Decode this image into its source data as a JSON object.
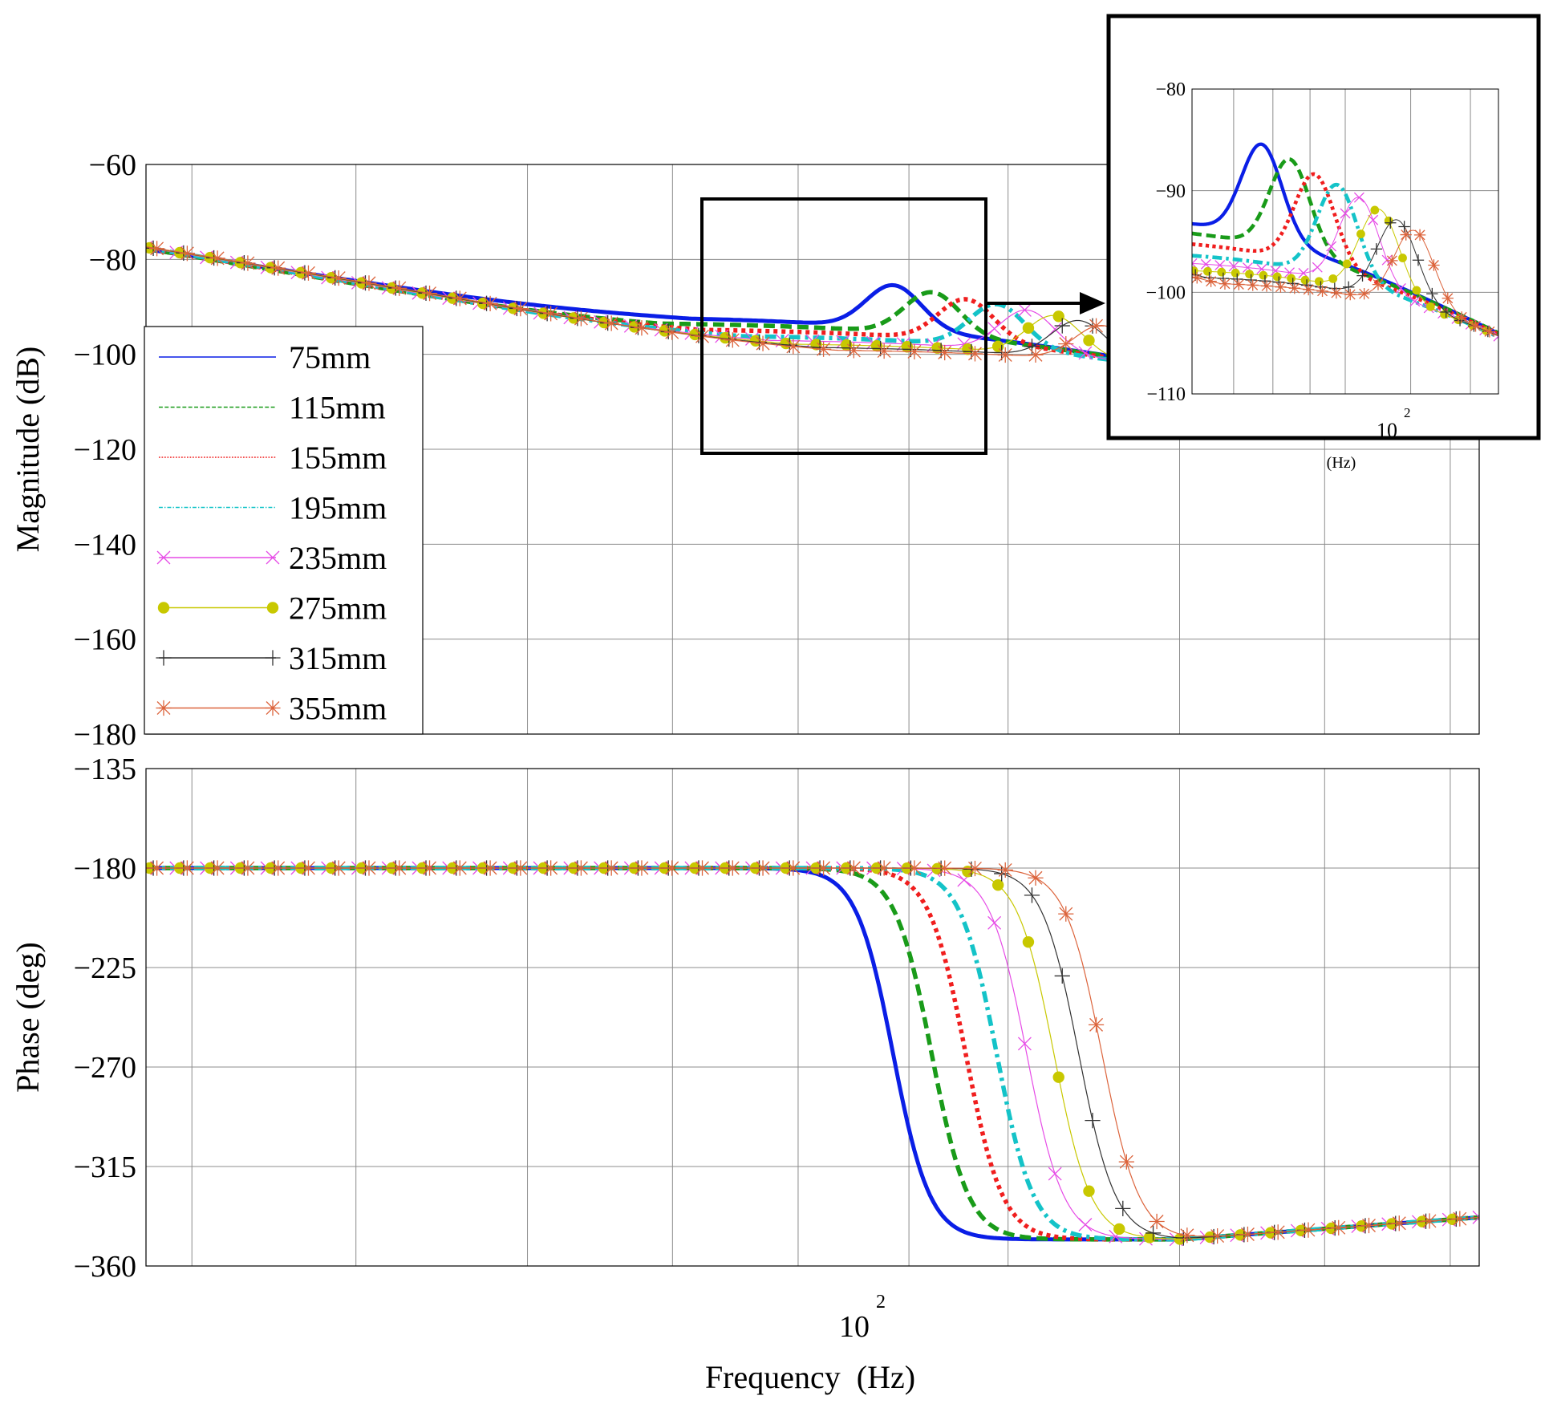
{
  "chart_data": [
    {
      "id": "magnitude",
      "type": "line",
      "xscale": "log",
      "xlim": [
        40,
        165
      ],
      "ylim": [
        -180,
        -60
      ],
      "yticks": [
        -60,
        -80,
        -100,
        -120,
        -140,
        -160,
        -180
      ],
      "yticklabels": [
        "−60",
        "−80",
        "−100",
        "−120",
        "−140",
        "−160",
        "−180"
      ],
      "ylabel": "Magnitude (dB)",
      "legend": {
        "position": "left",
        "entries": [
          "75mm",
          "115mm",
          "155mm",
          "195mm",
          "235mm",
          "275mm",
          "315mm",
          "355mm"
        ]
      }
    },
    {
      "id": "phase",
      "type": "line",
      "xscale": "log",
      "xlim": [
        40,
        165
      ],
      "ylim": [
        -360,
        -135
      ],
      "yticks": [
        -135,
        -180,
        -225,
        -270,
        -315,
        -360
      ],
      "yticklabels": [
        "−135",
        "−180",
        "−225",
        "−270",
        "−315",
        "−360"
      ],
      "ylabel": "Phase (deg)",
      "xtick_label_base": "10",
      "xtick_label_exp": "2",
      "xlabel": "Frequency  (Hz)"
    },
    {
      "id": "inset",
      "type": "line",
      "xscale": "log",
      "xlim": [
        80,
        125
      ],
      "ylim": [
        -110,
        -80
      ],
      "yticks": [
        -80,
        -90,
        -100,
        -110
      ],
      "yticklabels": [
        "−80",
        "−90",
        "−100",
        "−110"
      ],
      "xtick_label_base": "10",
      "xtick_label_exp": "2",
      "xlabel": "(Hz)"
    }
  ],
  "series": [
    {
      "name": "75mm",
      "fr": 88.5,
      "peak": -83,
      "plateau": -92,
      "color": "#0a1ee6",
      "style": "solid"
    },
    {
      "name": "115mm",
      "fr": 92.2,
      "peak": -84.5,
      "plateau": -93.3,
      "color": "#199b19",
      "style": "dash"
    },
    {
      "name": "155mm",
      "fr": 95.6,
      "peak": -86,
      "plateau": -94.6,
      "color": "#f01e1e",
      "style": "dot"
    },
    {
      "name": "195mm",
      "fr": 98.8,
      "peak": -87,
      "plateau": -95.9,
      "color": "#14c3c8",
      "style": "dashdot"
    },
    {
      "name": "235mm",
      "fr": 102.0,
      "peak": -88.3,
      "plateau": -96.8,
      "color": "#e64be6",
      "style": "x"
    },
    {
      "name": "275mm",
      "fr": 105.0,
      "peak": -89.5,
      "plateau": -97.6,
      "color": "#c8c800",
      "style": "circle"
    },
    {
      "name": "315mm",
      "fr": 107.8,
      "peak": -90.6,
      "plateau": -98.3,
      "color": "#323232",
      "style": "plus"
    },
    {
      "name": "355mm",
      "fr": 110.5,
      "peak": -91.7,
      "plateau": -98.9,
      "color": "#dc643c",
      "style": "star"
    }
  ]
}
